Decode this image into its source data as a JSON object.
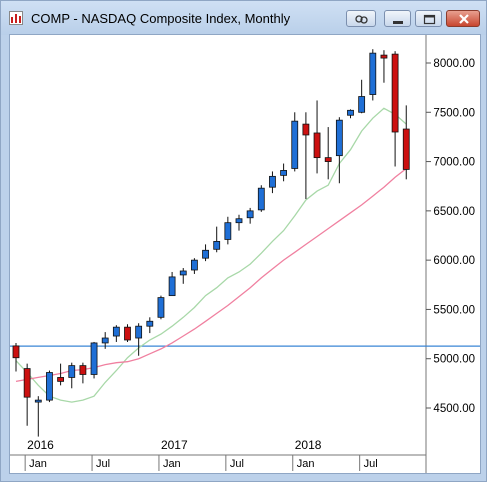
{
  "window": {
    "title": "COMP - NASDAQ Composite Index, Monthly",
    "icons": [
      "chart-app-icon",
      "link-icon",
      "minimize-icon",
      "maximize-icon",
      "close-icon"
    ]
  },
  "colors": {
    "up_candle": "#1f6fd6",
    "down_candle": "#cc1010",
    "ma_short": "#a8d8a8",
    "ma_long": "#f080a0",
    "reference_line": "#3a86d6"
  },
  "chart_data": {
    "type": "candlestick",
    "symbol": "COMP",
    "interval": "Monthly",
    "y_range": [
      4200,
      8300
    ],
    "y_ticks": [
      "8000.00",
      "7500.00",
      "7000.00",
      "6500.00",
      "6000.00",
      "5500.00",
      "5000.00",
      "4500.00"
    ],
    "x_year_labels": [
      {
        "label": "2016",
        "index": 1
      },
      {
        "label": "2017",
        "index": 13
      },
      {
        "label": "2018",
        "index": 25
      }
    ],
    "x_month_labels": [
      {
        "label": "Jan",
        "index": 1
      },
      {
        "label": "Jul",
        "index": 7
      },
      {
        "label": "Jan",
        "index": 13
      },
      {
        "label": "Jul",
        "index": 19
      },
      {
        "label": "Jan",
        "index": 25
      },
      {
        "label": "Jul",
        "index": 31
      }
    ],
    "reference_level": 5128,
    "candles": [
      {
        "o": 5130,
        "h": 5160,
        "l": 4870,
        "c": 5010
      },
      {
        "o": 4900,
        "h": 4950,
        "l": 4320,
        "c": 4610
      },
      {
        "o": 4560,
        "h": 4620,
        "l": 4210,
        "c": 4580
      },
      {
        "o": 4580,
        "h": 4880,
        "l": 4560,
        "c": 4860
      },
      {
        "o": 4810,
        "h": 4950,
        "l": 4730,
        "c": 4770
      },
      {
        "o": 4810,
        "h": 4960,
        "l": 4700,
        "c": 4930
      },
      {
        "o": 4930,
        "h": 4960,
        "l": 4750,
        "c": 4840
      },
      {
        "o": 4840,
        "h": 5170,
        "l": 4800,
        "c": 5160
      },
      {
        "o": 5160,
        "h": 5270,
        "l": 5100,
        "c": 5210
      },
      {
        "o": 5230,
        "h": 5340,
        "l": 5170,
        "c": 5320
      },
      {
        "o": 5320,
        "h": 5350,
        "l": 5170,
        "c": 5190
      },
      {
        "o": 5210,
        "h": 5360,
        "l": 5030,
        "c": 5330
      },
      {
        "o": 5330,
        "h": 5420,
        "l": 5260,
        "c": 5380
      },
      {
        "o": 5420,
        "h": 5640,
        "l": 5400,
        "c": 5620
      },
      {
        "o": 5640,
        "h": 5880,
        "l": 5640,
        "c": 5830
      },
      {
        "o": 5850,
        "h": 5920,
        "l": 5760,
        "c": 5890
      },
      {
        "o": 5900,
        "h": 6020,
        "l": 5860,
        "c": 6000
      },
      {
        "o": 6020,
        "h": 6160,
        "l": 5990,
        "c": 6100
      },
      {
        "o": 6110,
        "h": 6340,
        "l": 6080,
        "c": 6190
      },
      {
        "o": 6210,
        "h": 6440,
        "l": 6160,
        "c": 6380
      },
      {
        "o": 6380,
        "h": 6460,
        "l": 6300,
        "c": 6420
      },
      {
        "o": 6430,
        "h": 6530,
        "l": 6370,
        "c": 6500
      },
      {
        "o": 6510,
        "h": 6760,
        "l": 6490,
        "c": 6730
      },
      {
        "o": 6740,
        "h": 6900,
        "l": 6680,
        "c": 6850
      },
      {
        "o": 6860,
        "h": 6980,
        "l": 6800,
        "c": 6910
      },
      {
        "o": 6930,
        "h": 7500,
        "l": 6900,
        "c": 7410
      },
      {
        "o": 7380,
        "h": 7500,
        "l": 6620,
        "c": 7270
      },
      {
        "o": 7290,
        "h": 7620,
        "l": 6880,
        "c": 7040
      },
      {
        "o": 7040,
        "h": 7350,
        "l": 6820,
        "c": 7000
      },
      {
        "o": 7060,
        "h": 7450,
        "l": 6780,
        "c": 7420
      },
      {
        "o": 7470,
        "h": 7530,
        "l": 7440,
        "c": 7520
      },
      {
        "o": 7500,
        "h": 7830,
        "l": 7490,
        "c": 7660
      },
      {
        "o": 7680,
        "h": 8140,
        "l": 7620,
        "c": 8100
      },
      {
        "o": 8080,
        "h": 8130,
        "l": 7800,
        "c": 8050
      },
      {
        "o": 8090,
        "h": 8120,
        "l": 6950,
        "c": 7300
      },
      {
        "o": 7330,
        "h": 7570,
        "l": 6820,
        "c": 6920
      }
    ],
    "ma_short_values": [
      4980,
      4860,
      4730,
      4620,
      4580,
      4560,
      4580,
      4620,
      4760,
      4880,
      5010,
      5110,
      5190,
      5250,
      5330,
      5420,
      5520,
      5640,
      5720,
      5820,
      5880,
      5960,
      6070,
      6190,
      6300,
      6450,
      6610,
      6700,
      6760,
      6980,
      7120,
      7310,
      7440,
      7540,
      7480,
      7380
    ],
    "ma_long_values": [
      4770,
      4790,
      4810,
      4830,
      4850,
      4880,
      4890,
      4910,
      4940,
      4960,
      4970,
      5000,
      5050,
      5100,
      5160,
      5230,
      5300,
      5380,
      5460,
      5540,
      5630,
      5720,
      5820,
      5910,
      6000,
      6080,
      6160,
      6240,
      6320,
      6400,
      6480,
      6560,
      6650,
      6740,
      6840,
      6930
    ]
  }
}
